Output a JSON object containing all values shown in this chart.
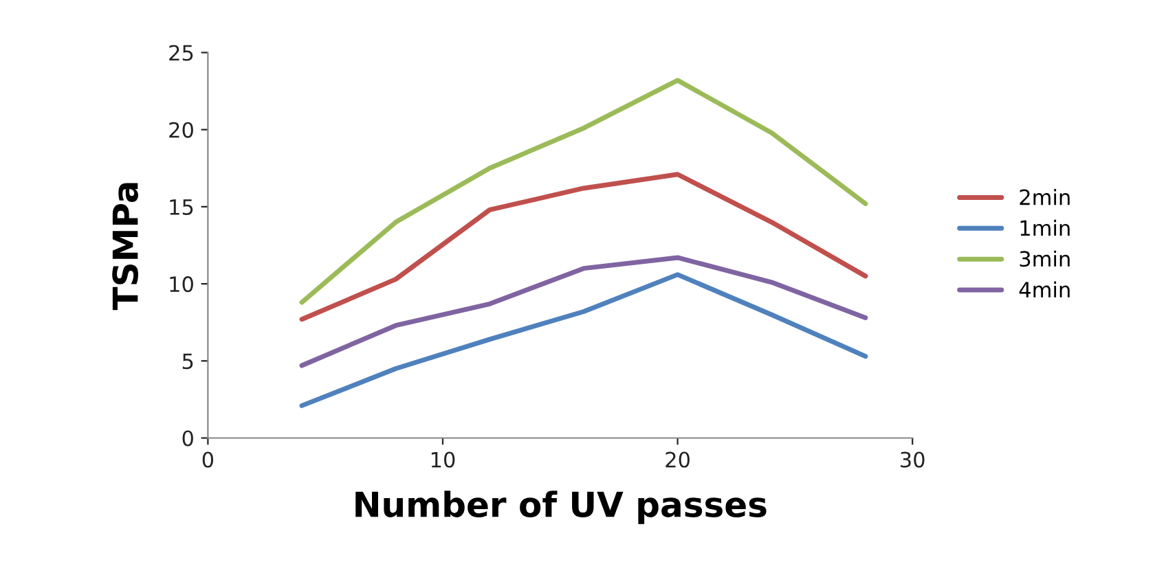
{
  "chart_data": {
    "type": "line",
    "xlabel": "Number of UV passes",
    "ylabel": "TSMPa",
    "x": [
      4,
      8,
      12,
      16,
      20,
      24,
      28
    ],
    "xlim": [
      0,
      30
    ],
    "xticks": [
      0,
      10,
      20,
      30
    ],
    "ylim": [
      0,
      25
    ],
    "yticks": [
      0,
      5,
      10,
      15,
      20,
      25
    ],
    "grid": false,
    "legend": "right",
    "marker": "none",
    "line_style": "solid",
    "series": [
      {
        "name": "2min",
        "color": "#c0504d",
        "values": [
          7.7,
          10.3,
          14.8,
          16.2,
          17.1,
          14.0,
          10.5
        ]
      },
      {
        "name": "1min",
        "color": "#4f81bd",
        "values": [
          2.1,
          4.5,
          6.4,
          8.2,
          10.6,
          8.0,
          5.3
        ]
      },
      {
        "name": "3min",
        "color": "#9bbb59",
        "values": [
          8.8,
          14.0,
          17.5,
          20.1,
          23.2,
          19.8,
          15.2
        ]
      },
      {
        "name": "4min",
        "color": "#8064a2",
        "values": [
          4.7,
          7.3,
          8.7,
          11.0,
          11.7,
          10.1,
          7.8
        ]
      }
    ]
  }
}
